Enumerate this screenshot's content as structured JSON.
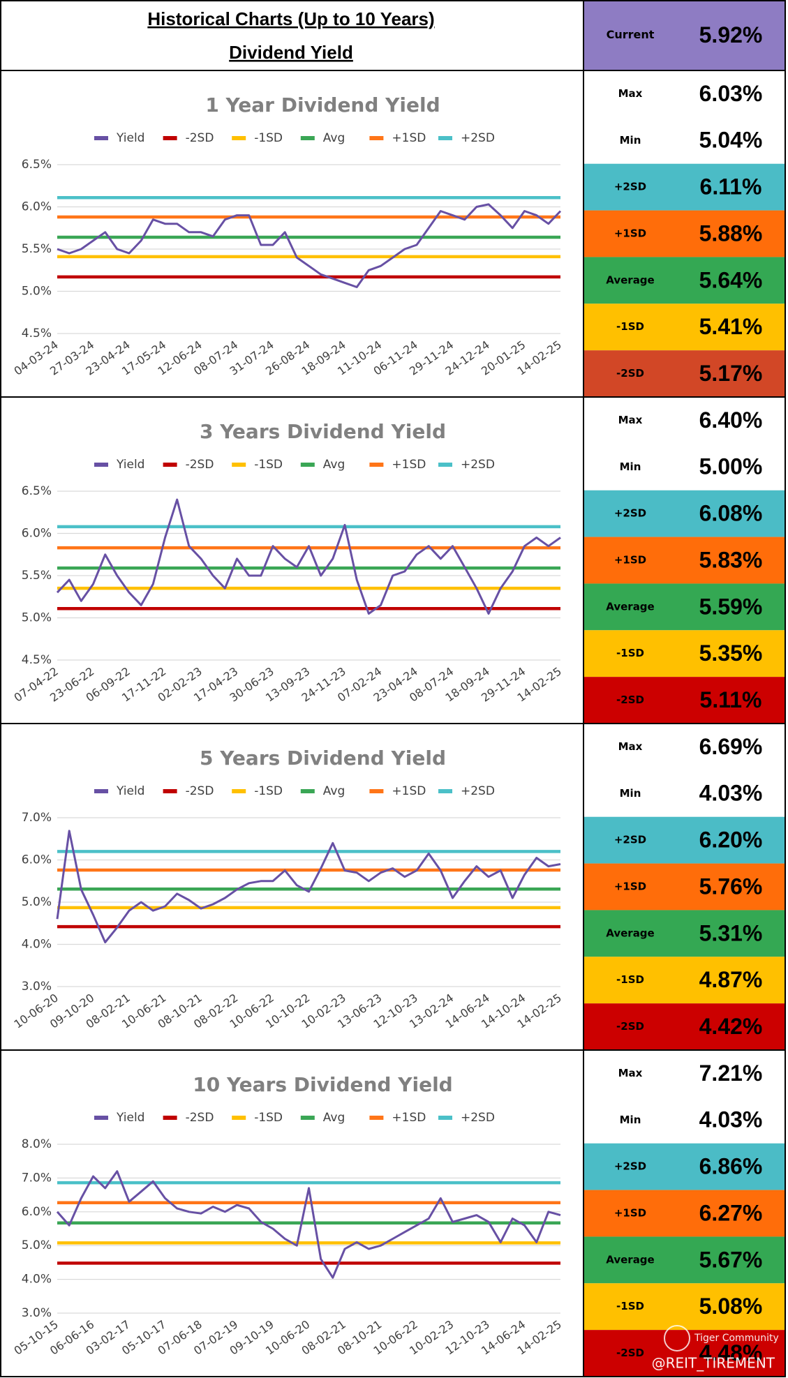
{
  "header": {
    "title": "Historical Charts (Up to 10 Years)",
    "subtitle": "Dividend Yield",
    "current": {
      "label": "Current",
      "value": "5.92%",
      "color": "#8e7cc3"
    }
  },
  "watermark": [
    "Tiger Community",
    "@REIT_TIREMENT"
  ],
  "chart_data": [
    {
      "type": "line",
      "title": "1 Year Dividend Yield",
      "grid": true,
      "categories": [
        "04-03-24",
        null,
        null,
        "27-03-24",
        null,
        null,
        "23-04-24",
        null,
        null,
        "17-05-24",
        null,
        null,
        "12-06-24",
        null,
        null,
        "08-07-24",
        null,
        null,
        "31-07-24",
        null,
        null,
        "26-08-24",
        null,
        null,
        "18-09-24",
        null,
        null,
        "11-10-24",
        null,
        null,
        "06-11-24",
        null,
        null,
        "29-11-24",
        null,
        null,
        "24-12-24",
        null,
        null,
        "20-01-25",
        null,
        null,
        "14-02-25"
      ],
      "ylim": [
        4.5,
        6.5
      ],
      "yticks": [
        {
          "value": 4.5,
          "label": "4.5%"
        },
        {
          "value": 5.0,
          "label": "5.0%"
        },
        {
          "value": 5.5,
          "label": "5.5%"
        },
        {
          "value": 6.0,
          "label": "6.0%"
        },
        {
          "value": 6.5,
          "label": "6.5%"
        }
      ],
      "series": [
        {
          "name": "Yield",
          "color": "#6750a4",
          "values": [
            5.5,
            5.45,
            5.5,
            5.6,
            5.7,
            5.5,
            5.45,
            5.6,
            5.85,
            5.8,
            5.8,
            5.7,
            5.7,
            5.65,
            5.85,
            5.9,
            5.9,
            5.55,
            5.55,
            5.7,
            5.4,
            5.3,
            5.2,
            5.15,
            5.1,
            5.05,
            5.25,
            5.3,
            5.4,
            5.5,
            5.55,
            5.75,
            5.95,
            5.9,
            5.85,
            6.0,
            6.03,
            5.9,
            5.75,
            5.95,
            5.9,
            5.8,
            5.95
          ]
        },
        {
          "name": "-2SD",
          "color": "#c00000",
          "value": 5.17
        },
        {
          "name": "-1SD",
          "color": "#ffc000",
          "value": 5.41
        },
        {
          "name": "Avg",
          "color": "#3aa655",
          "value": 5.64
        },
        {
          "name": "+1SD",
          "color": "#ff7518",
          "value": 5.88
        },
        {
          "name": "+2SD",
          "color": "#4bc0c8",
          "value": 6.11
        }
      ]
    },
    {
      "type": "line",
      "title": "3 Years Dividend Yield",
      "grid": true,
      "categories": [
        "07-04-22",
        null,
        null,
        "23-06-22",
        null,
        null,
        "06-09-22",
        null,
        null,
        "17-11-22",
        null,
        null,
        "02-02-23",
        null,
        null,
        "17-04-23",
        null,
        null,
        "30-06-23",
        null,
        null,
        "13-09-23",
        null,
        null,
        "24-11-23",
        null,
        null,
        "07-02-24",
        null,
        null,
        "23-04-24",
        null,
        null,
        "08-07-24",
        null,
        null,
        "18-09-24",
        null,
        null,
        "29-11-24",
        null,
        null,
        "14-02-25"
      ],
      "ylim": [
        4.5,
        6.5
      ],
      "yticks": [
        {
          "value": 4.5,
          "label": "4.5%"
        },
        {
          "value": 5.0,
          "label": "5.0%"
        },
        {
          "value": 5.5,
          "label": "5.5%"
        },
        {
          "value": 6.0,
          "label": "6.0%"
        },
        {
          "value": 6.5,
          "label": "6.5%"
        }
      ],
      "series": [
        {
          "name": "Yield",
          "color": "#6750a4",
          "values": [
            5.3,
            5.45,
            5.2,
            5.4,
            5.75,
            5.5,
            5.3,
            5.15,
            5.4,
            5.95,
            6.4,
            5.85,
            5.7,
            5.5,
            5.35,
            5.7,
            5.5,
            5.5,
            5.85,
            5.7,
            5.6,
            5.85,
            5.5,
            5.7,
            6.1,
            5.45,
            5.05,
            5.15,
            5.5,
            5.55,
            5.75,
            5.85,
            5.7,
            5.85,
            5.6,
            5.35,
            5.05,
            5.35,
            5.55,
            5.85,
            5.95,
            5.85,
            5.95
          ]
        },
        {
          "name": "-2SD",
          "color": "#c00000",
          "value": 5.11
        },
        {
          "name": "-1SD",
          "color": "#ffc000",
          "value": 5.35
        },
        {
          "name": "Avg",
          "color": "#3aa655",
          "value": 5.59
        },
        {
          "name": "+1SD",
          "color": "#ff7518",
          "value": 5.83
        },
        {
          "name": "+2SD",
          "color": "#4bc0c8",
          "value": 6.08
        }
      ]
    },
    {
      "type": "line",
      "title": "5 Years Dividend Yield",
      "grid": true,
      "categories": [
        "10-06-20",
        null,
        null,
        "09-10-20",
        null,
        null,
        "08-02-21",
        null,
        null,
        "10-06-21",
        null,
        null,
        "08-10-21",
        null,
        null,
        "08-02-22",
        null,
        null,
        "10-06-22",
        null,
        null,
        "10-10-22",
        null,
        null,
        "10-02-23",
        null,
        null,
        "13-06-23",
        null,
        null,
        "12-10-23",
        null,
        null,
        "13-02-24",
        null,
        null,
        "14-06-24",
        null,
        null,
        "14-10-24",
        null,
        null,
        "14-02-25"
      ],
      "ylim": [
        3.0,
        7.0
      ],
      "yticks": [
        {
          "value": 3.0,
          "label": "3.0%"
        },
        {
          "value": 4.0,
          "label": "4.0%"
        },
        {
          "value": 5.0,
          "label": "5.0%"
        },
        {
          "value": 6.0,
          "label": "6.0%"
        },
        {
          "value": 7.0,
          "label": "7.0%"
        }
      ],
      "series": [
        {
          "name": "Yield",
          "color": "#6750a4",
          "values": [
            4.6,
            6.69,
            5.3,
            4.7,
            4.05,
            4.4,
            4.8,
            5.0,
            4.8,
            4.9,
            5.2,
            5.05,
            4.85,
            4.95,
            5.1,
            5.3,
            5.45,
            5.5,
            5.5,
            5.75,
            5.4,
            5.25,
            5.8,
            6.4,
            5.75,
            5.7,
            5.5,
            5.7,
            5.8,
            5.6,
            5.75,
            6.15,
            5.75,
            5.1,
            5.5,
            5.85,
            5.6,
            5.75,
            5.1,
            5.65,
            6.05,
            5.85,
            5.9
          ]
        },
        {
          "name": "-2SD",
          "color": "#c00000",
          "value": 4.42
        },
        {
          "name": "-1SD",
          "color": "#ffc000",
          "value": 4.87
        },
        {
          "name": "Avg",
          "color": "#3aa655",
          "value": 5.31
        },
        {
          "name": "+1SD",
          "color": "#ff7518",
          "value": 5.76
        },
        {
          "name": "+2SD",
          "color": "#4bc0c8",
          "value": 6.2
        }
      ]
    },
    {
      "type": "line",
      "title": "10 Years Dividend Yield",
      "grid": true,
      "categories": [
        "05-10-15",
        null,
        null,
        "06-06-16",
        null,
        null,
        "03-02-17",
        null,
        null,
        "05-10-17",
        null,
        null,
        "07-06-18",
        null,
        null,
        "07-02-19",
        null,
        null,
        "09-10-19",
        null,
        null,
        "10-06-20",
        null,
        null,
        "08-02-21",
        null,
        null,
        "08-10-21",
        null,
        null,
        "10-06-22",
        null,
        null,
        "10-02-23",
        null,
        null,
        "12-10-23",
        null,
        null,
        "14-06-24",
        null,
        null,
        "14-02-25"
      ],
      "ylim": [
        3.0,
        8.0
      ],
      "yticks": [
        {
          "value": 3.0,
          "label": "3.0%"
        },
        {
          "value": 4.0,
          "label": "4.0%"
        },
        {
          "value": 5.0,
          "label": "5.0%"
        },
        {
          "value": 6.0,
          "label": "6.0%"
        },
        {
          "value": 7.0,
          "label": "7.0%"
        },
        {
          "value": 8.0,
          "label": "8.0%"
        }
      ],
      "series": [
        {
          "name": "Yield",
          "color": "#6750a4",
          "values": [
            6.0,
            5.6,
            6.4,
            7.05,
            6.7,
            7.2,
            6.3,
            6.6,
            6.9,
            6.4,
            6.1,
            6.0,
            5.95,
            6.15,
            6.0,
            6.2,
            6.1,
            5.7,
            5.5,
            5.2,
            5.0,
            6.7,
            4.6,
            4.05,
            4.9,
            5.1,
            4.9,
            5.0,
            5.2,
            5.4,
            5.6,
            5.8,
            6.4,
            5.7,
            5.8,
            5.9,
            5.7,
            5.1,
            5.8,
            5.6,
            5.1,
            6.0,
            5.9
          ]
        },
        {
          "name": "-2SD",
          "color": "#c00000",
          "value": 4.48
        },
        {
          "name": "-1SD",
          "color": "#ffc000",
          "value": 5.08
        },
        {
          "name": "Avg",
          "color": "#3aa655",
          "value": 5.67
        },
        {
          "name": "+1SD",
          "color": "#ff7518",
          "value": 6.27
        },
        {
          "name": "+2SD",
          "color": "#4bc0c8",
          "value": 6.86
        }
      ]
    }
  ],
  "stats": [
    [
      {
        "label": "Max",
        "value": "6.03%",
        "color": "#ffffff"
      },
      {
        "label": "Min",
        "value": "5.04%",
        "color": "#ffffff"
      },
      {
        "label": "+2SD",
        "value": "6.11%",
        "color": "#4bbcc6"
      },
      {
        "label": "+1SD",
        "value": "5.88%",
        "color": "#ff6d0a"
      },
      {
        "label": "Average",
        "value": "5.64%",
        "color": "#34a853"
      },
      {
        "label": "-1SD",
        "value": "5.41%",
        "color": "#ffc000"
      },
      {
        "label": "-2SD",
        "value": "5.17%",
        "color": "#d24726"
      }
    ],
    [
      {
        "label": "Max",
        "value": "6.40%",
        "color": "#ffffff"
      },
      {
        "label": "Min",
        "value": "5.00%",
        "color": "#ffffff"
      },
      {
        "label": "+2SD",
        "value": "6.08%",
        "color": "#4bbcc6"
      },
      {
        "label": "+1SD",
        "value": "5.83%",
        "color": "#ff6d0a"
      },
      {
        "label": "Average",
        "value": "5.59%",
        "color": "#34a853"
      },
      {
        "label": "-1SD",
        "value": "5.35%",
        "color": "#ffc000"
      },
      {
        "label": "-2SD",
        "value": "5.11%",
        "color": "#cc0000"
      }
    ],
    [
      {
        "label": "Max",
        "value": "6.69%",
        "color": "#ffffff"
      },
      {
        "label": "Min",
        "value": "4.03%",
        "color": "#ffffff"
      },
      {
        "label": "+2SD",
        "value": "6.20%",
        "color": "#4bbcc6"
      },
      {
        "label": "+1SD",
        "value": "5.76%",
        "color": "#ff6d0a"
      },
      {
        "label": "Average",
        "value": "5.31%",
        "color": "#34a853"
      },
      {
        "label": "-1SD",
        "value": "4.87%",
        "color": "#ffc000"
      },
      {
        "label": "-2SD",
        "value": "4.42%",
        "color": "#cc0000"
      }
    ],
    [
      {
        "label": "Max",
        "value": "7.21%",
        "color": "#ffffff"
      },
      {
        "label": "Min",
        "value": "4.03%",
        "color": "#ffffff"
      },
      {
        "label": "+2SD",
        "value": "6.86%",
        "color": "#4bbcc6"
      },
      {
        "label": "+1SD",
        "value": "6.27%",
        "color": "#ff6d0a"
      },
      {
        "label": "Average",
        "value": "5.67%",
        "color": "#34a853"
      },
      {
        "label": "-1SD",
        "value": "5.08%",
        "color": "#ffc000"
      },
      {
        "label": "-2SD",
        "value": "4.48%",
        "color": "#cc0000"
      }
    ]
  ]
}
